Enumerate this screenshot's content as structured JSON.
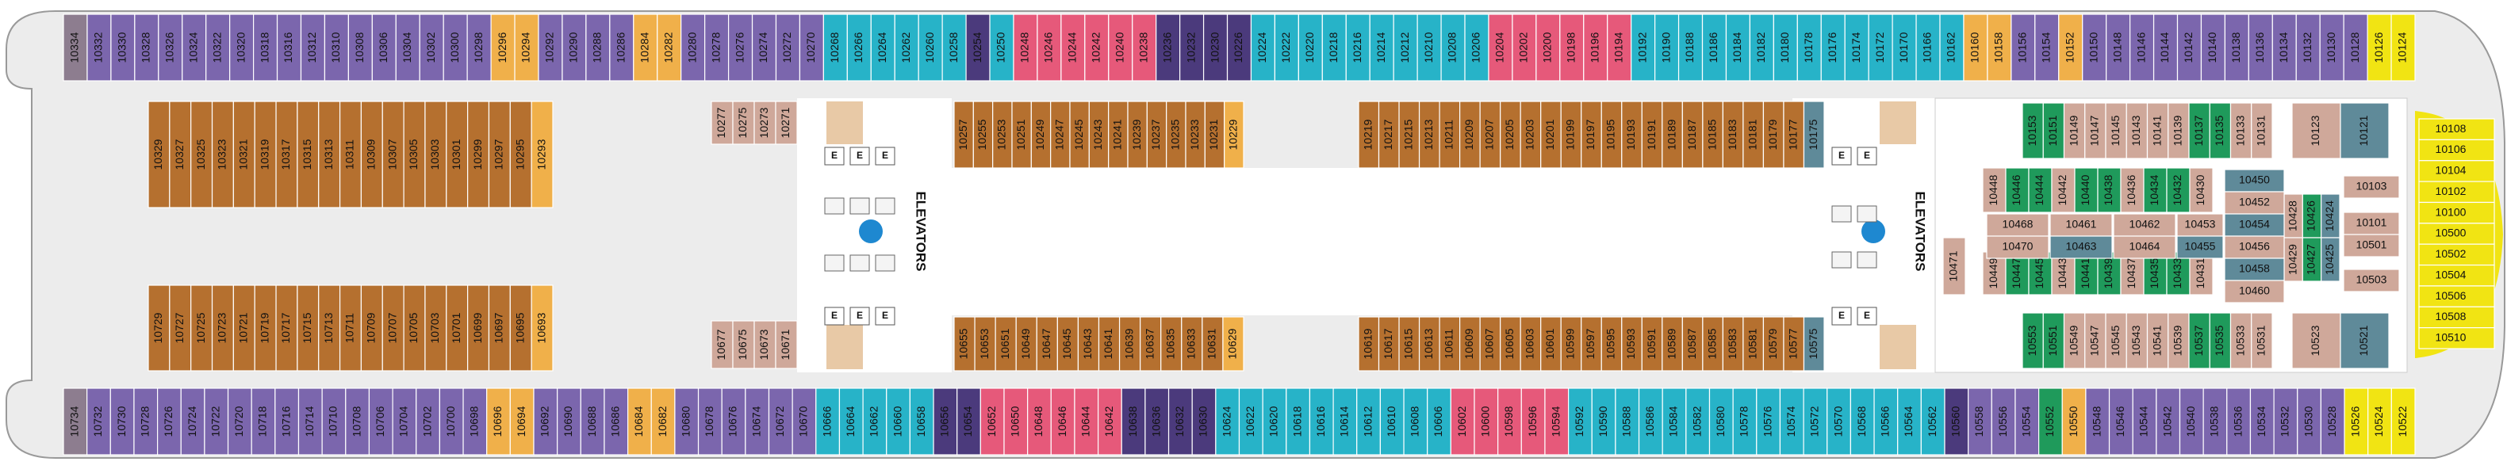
{
  "elevators_label": "ELEVATORS",
  "elevator_sign": "E",
  "rows": [
    {
      "runs": [
        {
          "color": "#8d7d8f",
          "cabins": [
            "10334"
          ]
        },
        {
          "color": "#7b66ad",
          "cabins": [
            "10332",
            "10330",
            "10328",
            "10326",
            "10324",
            "10322",
            "10320",
            "10318",
            "10316",
            "10312",
            "10310",
            "10308",
            "10306",
            "10304",
            "10302",
            "10300",
            "10298"
          ]
        },
        {
          "color": "#f0b04a",
          "cabins": [
            "10296",
            "10294"
          ]
        },
        {
          "color": "#7b66ad",
          "cabins": [
            "10292",
            "10290",
            "10288",
            "10286"
          ]
        },
        {
          "color": "#f0b04a",
          "cabins": [
            "10284",
            "10282"
          ]
        },
        {
          "color": "#7b66ad",
          "cabins": [
            "10280",
            "10278",
            "10276",
            "10274",
            "10272",
            "10270"
          ]
        },
        {
          "color": "#27b3c8",
          "cabins": [
            "10268",
            "10266",
            "10264",
            "10262",
            "10260",
            "10258"
          ]
        },
        {
          "color": "#4b3a7c",
          "cabins": [
            "10254"
          ]
        },
        {
          "color": "#27b3c8",
          "cabins": [
            "10250"
          ]
        },
        {
          "color": "#e6597a",
          "cabins": [
            "10248",
            "10246",
            "10244",
            "10242",
            "10240",
            "10238"
          ]
        },
        {
          "color": "#4b3a7c",
          "cabins": [
            "10236",
            "10232",
            "10230",
            "10226"
          ]
        },
        {
          "color": "#27b3c8",
          "cabins": [
            "10224",
            "10222",
            "10220",
            "10218",
            "10216",
            "10214",
            "10212",
            "10210",
            "10208",
            "10206"
          ]
        },
        {
          "color": "#e6597a",
          "cabins": [
            "10204",
            "10202",
            "10200",
            "10198",
            "10196",
            "10194"
          ]
        },
        {
          "color": "#27b3c8",
          "cabins": [
            "10192",
            "10190",
            "10188",
            "10186",
            "10184",
            "10182",
            "10180",
            "10178",
            "10176",
            "10174",
            "10172",
            "10170",
            "10166",
            "10162"
          ]
        },
        {
          "color": "#f0b04a",
          "cabins": [
            "10160",
            "10158"
          ]
        },
        {
          "color": "#7b66ad",
          "cabins": [
            "10156",
            "10154"
          ]
        },
        {
          "color": "#f0b04a",
          "cabins": [
            "10152"
          ]
        },
        {
          "color": "#7b66ad",
          "cabins": [
            "10150",
            "10148",
            "10146",
            "10144",
            "10142",
            "10140",
            "10138",
            "10136",
            "10134",
            "10132",
            "10130",
            "10128"
          ]
        },
        {
          "color": "#f1e413",
          "cabins": [
            "10126",
            "10124"
          ]
        }
      ]
    },
    {
      "runs": [
        {
          "color": "#8d7d8f",
          "cabins": [
            "10734"
          ]
        },
        {
          "color": "#7b66ad",
          "cabins": [
            "10732",
            "10730",
            "10728",
            "10726",
            "10724",
            "10722",
            "10720",
            "10718",
            "10716",
            "10714",
            "10710",
            "10708",
            "10706",
            "10704",
            "10702",
            "10700",
            "10698"
          ]
        },
        {
          "color": "#f0b04a",
          "cabins": [
            "10696",
            "10694"
          ]
        },
        {
          "color": "#7b66ad",
          "cabins": [
            "10692",
            "10690",
            "10688",
            "10686"
          ]
        },
        {
          "color": "#f0b04a",
          "cabins": [
            "10684",
            "10682"
          ]
        },
        {
          "color": "#7b66ad",
          "cabins": [
            "10680",
            "10678",
            "10676",
            "10674",
            "10672",
            "10670"
          ]
        },
        {
          "color": "#27b3c8",
          "cabins": [
            "10666",
            "10664",
            "10662",
            "10660",
            "10658"
          ]
        },
        {
          "color": "#4b3a7c",
          "cabins": [
            "10656",
            "10654"
          ]
        },
        {
          "color": "#e6597a",
          "cabins": [
            "10652",
            "10650",
            "10648",
            "10646",
            "10644",
            "10642"
          ]
        },
        {
          "color": "#4b3a7c",
          "cabins": [
            "10638",
            "10636",
            "10632",
            "10630"
          ]
        },
        {
          "color": "#27b3c8",
          "cabins": [
            "10624",
            "10622",
            "10620",
            "10618",
            "10616",
            "10614",
            "10612",
            "10610",
            "10608",
            "10606"
          ]
        },
        {
          "color": "#e6597a",
          "cabins": [
            "10602",
            "10600",
            "10598",
            "10596",
            "10594"
          ]
        },
        {
          "color": "#27b3c8",
          "cabins": [
            "10592",
            "10590",
            "10588",
            "10586",
            "10584",
            "10582",
            "10580",
            "10578",
            "10576",
            "10574",
            "10572",
            "10570",
            "10568",
            "10566",
            "10564",
            "10562"
          ]
        },
        {
          "color": "#4b3a7c",
          "cabins": [
            "10560"
          ]
        },
        {
          "color": "#7b66ad",
          "cabins": [
            "10558",
            "10556",
            "10554"
          ]
        },
        {
          "color": "#1f9a5b",
          "cabins": [
            "10552"
          ]
        },
        {
          "color": "#f0b04a",
          "cabins": [
            "10550"
          ]
        },
        {
          "color": "#7b66ad",
          "cabins": [
            "10548",
            "10546",
            "10544",
            "10542",
            "10540",
            "10538",
            "10536",
            "10534",
            "10532",
            "10530",
            "10528"
          ]
        },
        {
          "color": "#f1e413",
          "cabins": [
            "10526",
            "10524",
            "10522"
          ]
        }
      ]
    },
    {
      "runs": [
        {
          "color": "#b5702f",
          "cabins": [
            "10329",
            "10327",
            "10325",
            "10323",
            "10321",
            "10319",
            "10317",
            "10315",
            "10313",
            "10311",
            "10309",
            "10307",
            "10305",
            "10303",
            "10301",
            "10299",
            "10297",
            "10295"
          ]
        },
        {
          "color": "#f0b04a",
          "cabins": [
            "10293"
          ]
        }
      ]
    },
    {
      "runs": [
        {
          "color": "#b5702f",
          "cabins": [
            "10729",
            "10727",
            "10725",
            "10723",
            "10721",
            "10719",
            "10717",
            "10715",
            "10713",
            "10711",
            "10709",
            "10707",
            "10705",
            "10703",
            "10701",
            "10699",
            "10697",
            "10695"
          ]
        },
        {
          "color": "#f0b04a",
          "cabins": [
            "10693"
          ]
        }
      ]
    },
    {
      "runs": [
        {
          "color": "#cfa89a",
          "cabins": [
            "10277",
            "10275",
            "10273",
            "10271"
          ]
        }
      ]
    },
    {
      "runs": [
        {
          "color": "#cfa89a",
          "cabins": [
            "10677",
            "10675",
            "10673",
            "10671"
          ]
        }
      ]
    },
    {
      "runs": [
        {
          "color": "#b5702f",
          "cabins": [
            "10257",
            "10255",
            "10253",
            "10251",
            "10249",
            "10247",
            "10245",
            "10243",
            "10241",
            "10239",
            "10237",
            "10235",
            "10233",
            "10231"
          ]
        },
        {
          "color": "#f0b04a",
          "cabins": [
            "10229"
          ]
        }
      ]
    },
    {
      "runs": [
        {
          "color": "#b5702f",
          "cabins": [
            "10219",
            "10217",
            "10215",
            "10213",
            "10211",
            "10209",
            "10207",
            "10205",
            "10203",
            "10201",
            "10199",
            "10197",
            "10195",
            "10193",
            "10191",
            "10189",
            "10187",
            "10185",
            "10183",
            "10181",
            "10179",
            "10177"
          ]
        },
        {
          "color": "#5f8a99",
          "cabins": [
            "10175"
          ]
        }
      ]
    },
    {
      "runs": [
        {
          "color": "#b5702f",
          "cabins": [
            "10655",
            "10653",
            "10651",
            "10649",
            "10647",
            "10645",
            "10643",
            "10641",
            "10639",
            "10637",
            "10635",
            "10633",
            "10631"
          ]
        },
        {
          "color": "#f0b04a",
          "cabins": [
            "10629"
          ]
        }
      ]
    },
    {
      "runs": [
        {
          "color": "#b5702f",
          "cabins": [
            "10619",
            "10617",
            "10615",
            "10613",
            "10611",
            "10609",
            "10607",
            "10605",
            "10603",
            "10601",
            "10599",
            "10597",
            "10595",
            "10593",
            "10591",
            "10589",
            "10587",
            "10585",
            "10583",
            "10581",
            "10579",
            "10577"
          ]
        },
        {
          "color": "#5f8a99",
          "cabins": [
            "10575"
          ]
        }
      ]
    },
    {
      "runs": [
        {
          "color": "#1f9a5b",
          "cabins": [
            "10153",
            "10151"
          ]
        },
        {
          "color": "#cfa89a",
          "cabins": [
            "10149",
            "10147",
            "10145",
            "10143",
            "10141",
            "10139"
          ]
        },
        {
          "color": "#1f9a5b",
          "cabins": [
            "10137",
            "10135"
          ]
        },
        {
          "color": "#cfa89a",
          "cabins": [
            "10133",
            "10131"
          ]
        }
      ]
    },
    {
      "runs": [
        {
          "color": "#cfa89a",
          "cabins": [
            "10123"
          ]
        },
        {
          "color": "#5f8a99",
          "cabins": [
            "10121"
          ]
        }
      ]
    },
    {
      "runs": [
        {
          "color": "#1f9a5b",
          "cabins": [
            "10553",
            "10551"
          ]
        },
        {
          "color": "#cfa89a",
          "cabins": [
            "10549",
            "10547",
            "10545",
            "10543",
            "10541",
            "10539"
          ]
        },
        {
          "color": "#1f9a5b",
          "cabins": [
            "10537",
            "10535"
          ]
        },
        {
          "color": "#cfa89a",
          "cabins": [
            "10533",
            "10531"
          ]
        }
      ]
    },
    {
      "runs": [
        {
          "color": "#cfa89a",
          "cabins": [
            "10523"
          ]
        },
        {
          "color": "#5f8a99",
          "cabins": [
            "10521"
          ]
        }
      ]
    },
    {
      "runs": [
        {
          "color": "#cfa89a",
          "cabins": [
            "10448"
          ]
        },
        {
          "color": "#1f9a5b",
          "cabins": [
            "10446",
            "10444"
          ]
        },
        {
          "color": "#cfa89a",
          "cabins": [
            "10442"
          ]
        },
        {
          "color": "#1f9a5b",
          "cabins": [
            "10440",
            "10438"
          ]
        },
        {
          "color": "#cfa89a",
          "cabins": [
            "10436"
          ]
        },
        {
          "color": "#1f9a5b",
          "cabins": [
            "10434",
            "10432"
          ]
        },
        {
          "color": "#cfa89a",
          "cabins": [
            "10430"
          ]
        }
      ]
    },
    {
      "runs": [
        {
          "color": "#cfa89a",
          "cabins": [
            "10449"
          ]
        },
        {
          "color": "#1f9a5b",
          "cabins": [
            "10447",
            "10445"
          ]
        },
        {
          "color": "#cfa89a",
          "cabins": [
            "10443"
          ]
        },
        {
          "color": "#1f9a5b",
          "cabins": [
            "10441",
            "10439"
          ]
        },
        {
          "color": "#cfa89a",
          "cabins": [
            "10437"
          ]
        },
        {
          "color": "#1f9a5b",
          "cabins": [
            "10435",
            "10433"
          ]
        },
        {
          "color": "#cfa89a",
          "cabins": [
            "10431"
          ]
        }
      ]
    },
    {
      "runs": [
        {
          "color": "#cfa89a",
          "cabins": [
            "10471"
          ]
        }
      ]
    },
    {
      "runs": [
        {
          "color": "#cfa89a",
          "cabins": [
            "10428"
          ]
        },
        {
          "color": "#1f9a5b",
          "cabins": [
            "10426"
          ]
        },
        {
          "color": "#5f8a99",
          "cabins": [
            "10424"
          ]
        }
      ]
    },
    {
      "runs": [
        {
          "color": "#cfa89a",
          "cabins": [
            "10429"
          ]
        },
        {
          "color": "#1f9a5b",
          "cabins": [
            "10427"
          ]
        },
        {
          "color": "#5f8a99",
          "cabins": [
            "10425"
          ]
        }
      ]
    }
  ],
  "cells": [
    {
      "label": "10468",
      "color": "#cfa89a"
    },
    {
      "label": "10461",
      "color": "#cfa89a"
    },
    {
      "label": "10470",
      "color": "#cfa89a"
    },
    {
      "label": "10463",
      "color": "#5f8a99"
    },
    {
      "label": "10462",
      "color": "#cfa89a"
    },
    {
      "label": "10453",
      "color": "#cfa89a"
    },
    {
      "label": "10464",
      "color": "#cfa89a"
    },
    {
      "label": "10455",
      "color": "#5f8a99"
    },
    {
      "label": "10450",
      "color": "#5f8a99"
    },
    {
      "label": "10452",
      "color": "#cfa89a"
    },
    {
      "label": "10454",
      "color": "#5f8a99"
    },
    {
      "label": "10456",
      "color": "#cfa89a"
    },
    {
      "label": "10458",
      "color": "#5f8a99"
    },
    {
      "label": "10460",
      "color": "#cfa89a"
    },
    {
      "label": "10103",
      "color": "#cfa89a"
    },
    {
      "label": "10101",
      "color": "#cfa89a"
    },
    {
      "label": "10501",
      "color": "#cfa89a"
    },
    {
      "label": "10503",
      "color": "#cfa89a"
    }
  ],
  "bow": {
    "color": "#f1e413",
    "cabins": [
      "10108",
      "10106",
      "10104",
      "10102",
      "10100",
      "10500",
      "10502",
      "10504",
      "10506",
      "10508",
      "10510"
    ]
  }
}
